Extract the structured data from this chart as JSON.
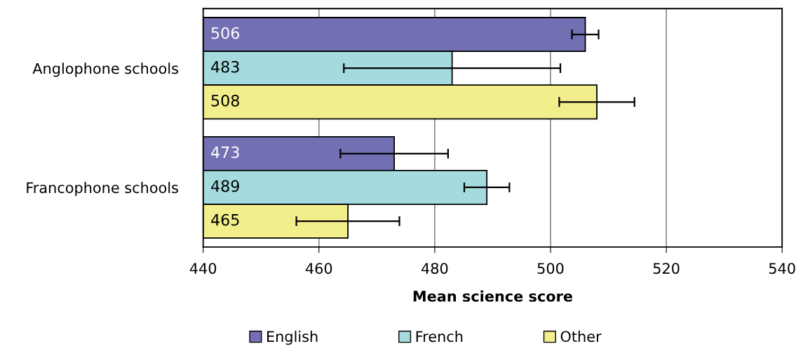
{
  "chart_data": {
    "type": "bar",
    "orientation": "horizontal",
    "xlabel": "Mean science score",
    "categories": [
      "Anglophone schools",
      "Francophone schools"
    ],
    "series": [
      {
        "name": "English",
        "color": "#7270b3",
        "values": [
          506,
          473
        ],
        "errors": [
          2.3,
          9.3
        ]
      },
      {
        "name": "French",
        "color": "#a5dbdf",
        "values": [
          483,
          489
        ],
        "errors": [
          18.7,
          3.9
        ]
      },
      {
        "name": "Other",
        "color": "#f3ee8c",
        "values": [
          508,
          465
        ],
        "errors": [
          6.5,
          8.9
        ]
      }
    ],
    "xlim": [
      440,
      540
    ],
    "xticks": [
      440,
      460,
      480,
      500,
      520,
      540
    ],
    "grid": "x",
    "legend": "bottom",
    "data_labels": true
  }
}
